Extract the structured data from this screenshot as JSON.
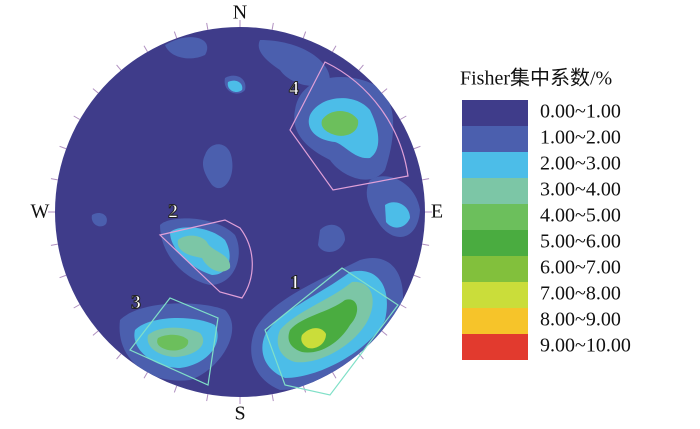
{
  "figure": {
    "directions": {
      "north": "N",
      "south": "S",
      "west": "W",
      "east": "E"
    },
    "sets": [
      "1",
      "2",
      "3",
      "4"
    ],
    "legend": {
      "title": "Fisher集中系数/%",
      "items": [
        {
          "label": "0.00~1.00",
          "color": "#3f3c8a"
        },
        {
          "label": "1.00~2.00",
          "color": "#4b5fae"
        },
        {
          "label": "2.00~3.00",
          "color": "#4cbde8"
        },
        {
          "label": "3.00~4.00",
          "color": "#7cc6a6"
        },
        {
          "label": "4.00~5.00",
          "color": "#6cbf5c"
        },
        {
          "label": "5.00~6.00",
          "color": "#4aac40"
        },
        {
          "label": "6.00~7.00",
          "color": "#82c03c"
        },
        {
          "label": "7.00~8.00",
          "color": "#cadd3a"
        },
        {
          "label": "8.00~9.00",
          "color": "#f6c42a"
        },
        {
          "label": "9.00~10.00",
          "color": "#e23a2e"
        }
      ]
    }
  }
}
